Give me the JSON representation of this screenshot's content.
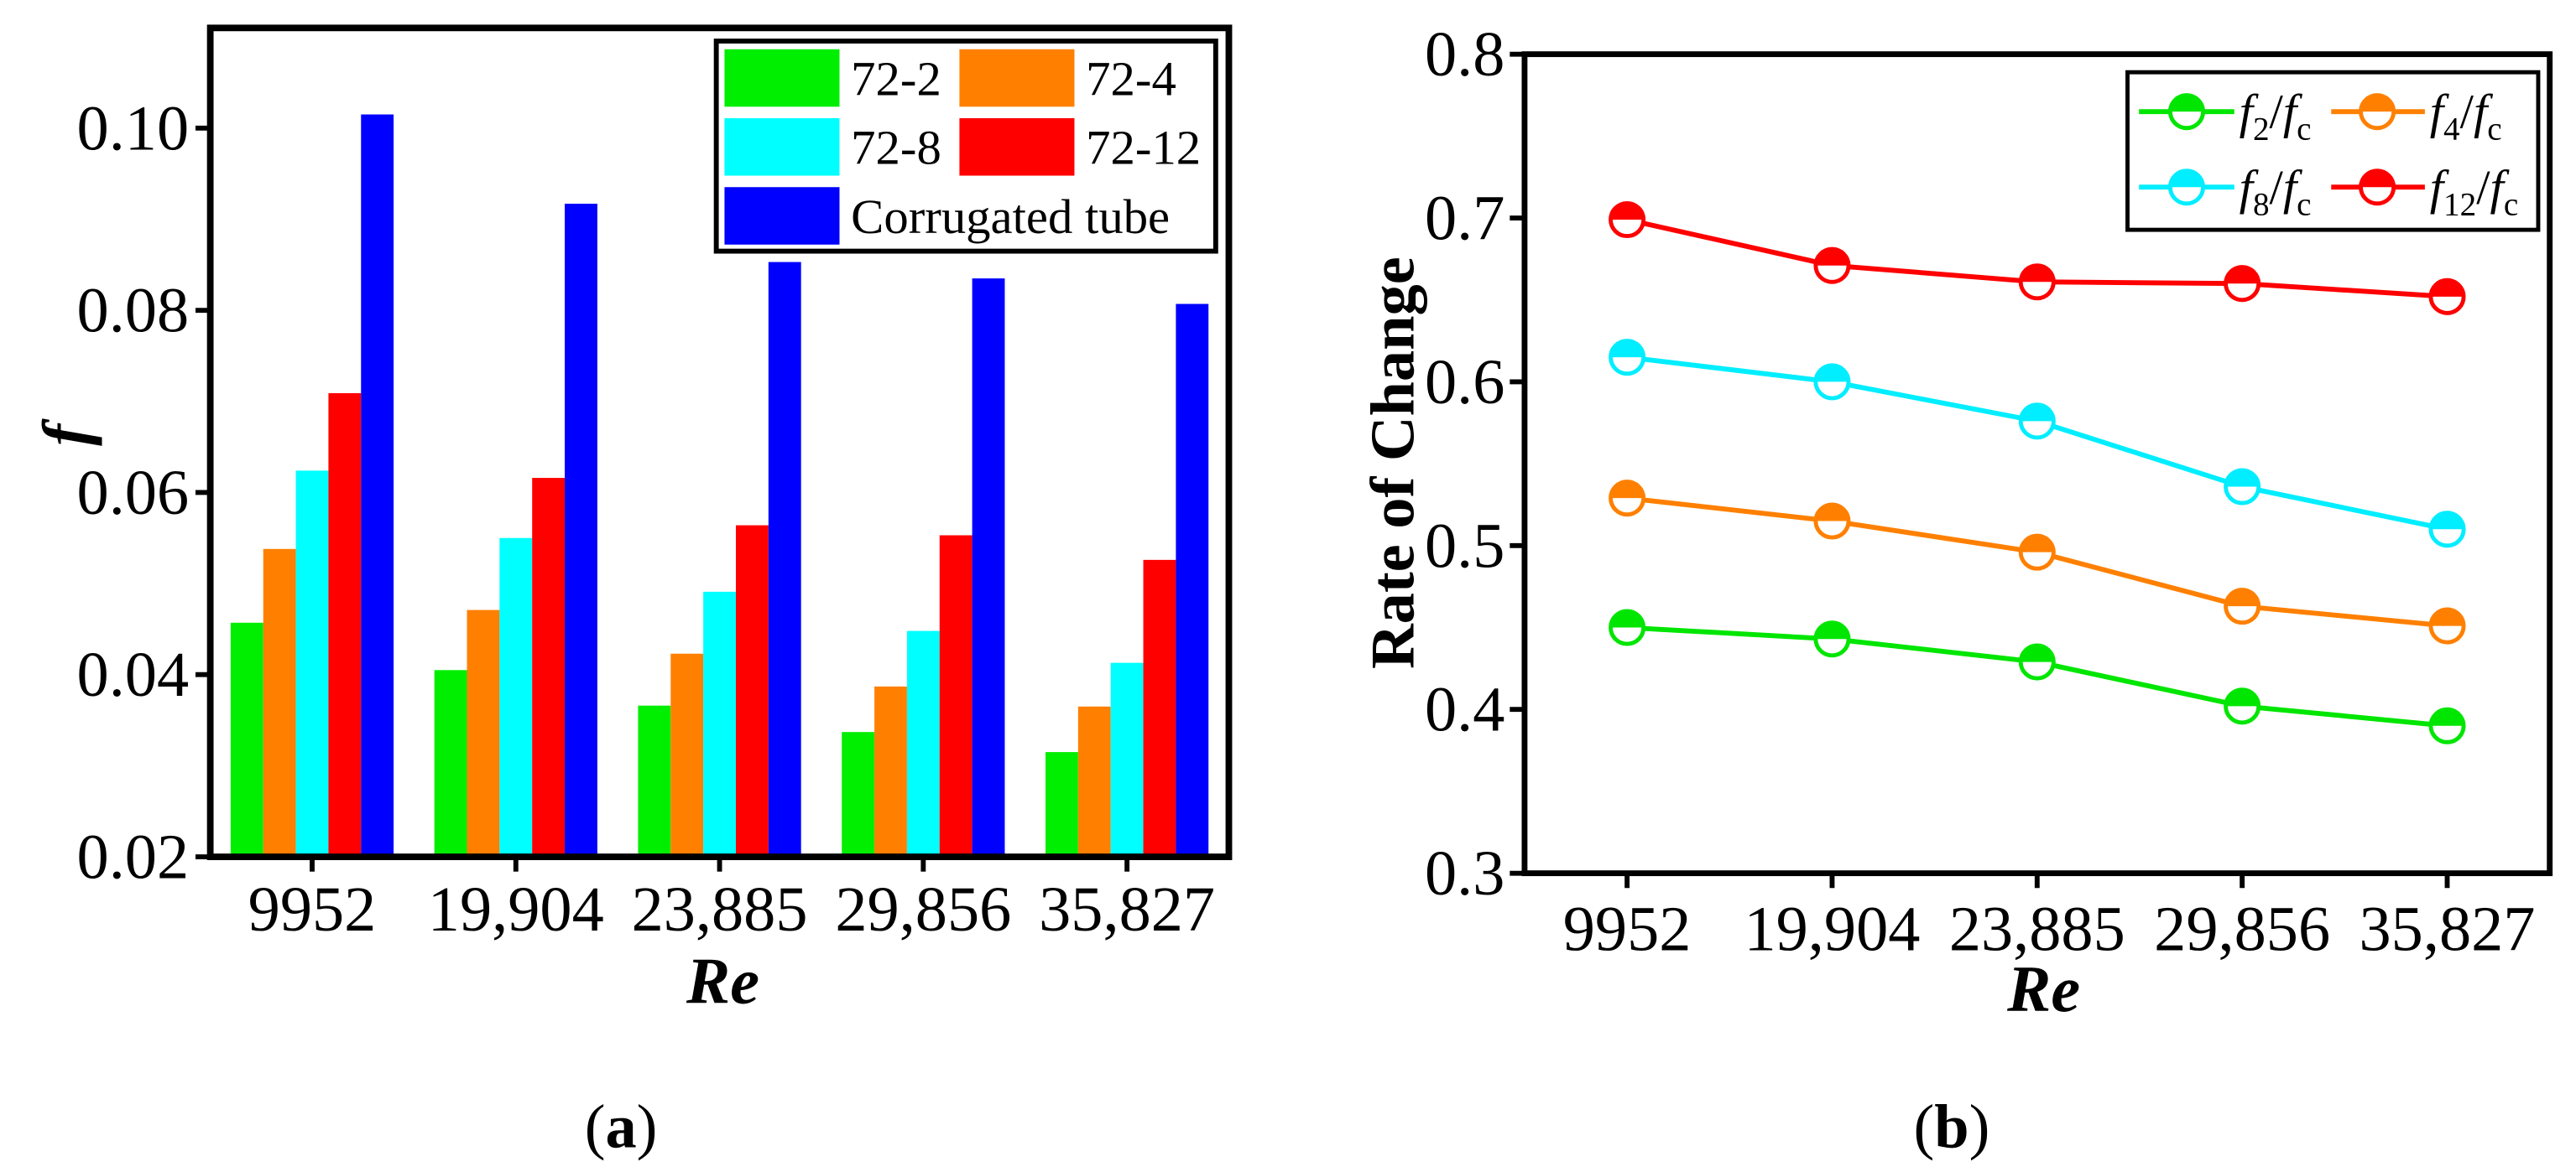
{
  "chart_data": [
    {
      "type": "bar",
      "caption": {
        "open": "(",
        "letter": "a",
        "close": ")"
      },
      "xlabel": "Re",
      "ylabel": "f",
      "categories": [
        "9952",
        "19,904",
        "23,885",
        "29,856",
        "35,827"
      ],
      "ylim": [
        0.02,
        0.111
      ],
      "yticks": [
        "0.02",
        "0.04",
        "0.06",
        "0.08",
        "0.10"
      ],
      "grid": false,
      "legend_position": "top-right",
      "series": [
        {
          "name": "72-2",
          "color": "#00ee00",
          "values": [
            0.0457,
            0.0405,
            0.0366,
            0.0337,
            0.0315
          ]
        },
        {
          "name": "72-4",
          "color": "#ff8000",
          "values": [
            0.0538,
            0.0471,
            0.0423,
            0.0387,
            0.0365
          ]
        },
        {
          "name": "72-8",
          "color": "#00ffff",
          "values": [
            0.0624,
            0.055,
            0.0491,
            0.0448,
            0.0413
          ]
        },
        {
          "name": "72-12",
          "color": "#ff0000",
          "values": [
            0.0709,
            0.0616,
            0.0564,
            0.0553,
            0.0526
          ]
        },
        {
          "name": "Corrugated tube",
          "color": "#0000ff",
          "values": [
            0.1015,
            0.0917,
            0.0853,
            0.0835,
            0.0807
          ]
        }
      ]
    },
    {
      "type": "line",
      "caption": {
        "open": "(",
        "letter": "b",
        "close": ")"
      },
      "xlabel": "Re",
      "ylabel": "Rate of Change",
      "categories": [
        "9952",
        "19,904",
        "23,885",
        "29,856",
        "35,827"
      ],
      "ylim": [
        0.3,
        0.8
      ],
      "yticks": [
        "0.3",
        "0.4",
        "0.5",
        "0.6",
        "0.7",
        "0.8"
      ],
      "grid": false,
      "legend_position": "top-right",
      "series": [
        {
          "label": {
            "base": "f",
            "sub": "2",
            "sep": "/",
            "base2": "f",
            "sub2": "c"
          },
          "color": "#00e600",
          "values": [
            0.45,
            0.443,
            0.429,
            0.402,
            0.39
          ]
        },
        {
          "label": {
            "base": "f",
            "sub": "4",
            "sep": "/",
            "base2": "f",
            "sub2": "c"
          },
          "color": "#ff8000",
          "values": [
            0.529,
            0.515,
            0.496,
            0.463,
            0.451
          ]
        },
        {
          "label": {
            "base": "f",
            "sub": "8",
            "sep": "/",
            "base2": "f",
            "sub2": "c"
          },
          "color": "#00eeff",
          "values": [
            0.615,
            0.6,
            0.576,
            0.536,
            0.51
          ]
        },
        {
          "label": {
            "base": "f",
            "sub": "12",
            "sep": "/",
            "base2": "f",
            "sub2": "c"
          },
          "color": "#ff0000",
          "values": [
            0.699,
            0.671,
            0.661,
            0.66,
            0.652
          ]
        }
      ]
    }
  ]
}
